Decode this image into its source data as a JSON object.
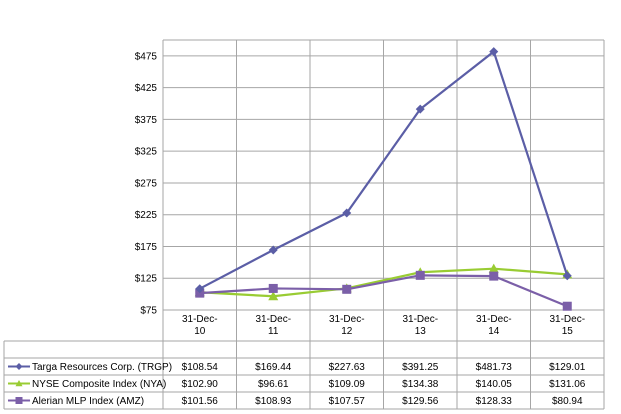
{
  "chart_data": {
    "type": "line",
    "categories": [
      "31-Dec-10",
      "31-Dec-11",
      "31-Dec-12",
      "31-Dec-13",
      "31-Dec-14",
      "31-Dec-15"
    ],
    "category_lines": [
      [
        "31-Dec-",
        "10"
      ],
      [
        "31-Dec-",
        "11"
      ],
      [
        "31-Dec-",
        "12"
      ],
      [
        "31-Dec-",
        "13"
      ],
      [
        "31-Dec-",
        "14"
      ],
      [
        "31-Dec-",
        "15"
      ]
    ],
    "yticks": [
      75,
      125,
      175,
      225,
      275,
      325,
      375,
      425,
      475
    ],
    "ytick_labels": [
      "$75",
      "$125",
      "$175",
      "$225",
      "$275",
      "$325",
      "$375",
      "$425",
      "$475"
    ],
    "ylim": [
      75,
      500
    ],
    "grid": true,
    "legend": "data-table-below",
    "series": [
      {
        "name": "Targa Resources Corp. (TRGP)",
        "marker": "diamond",
        "color": "#5b5ea6",
        "values": [
          108.54,
          169.44,
          227.63,
          391.25,
          481.73,
          129.01
        ],
        "labels": [
          "$108.54",
          "$169.44",
          "$227.63",
          "$391.25",
          "$481.73",
          "$129.01"
        ]
      },
      {
        "name": "NYSE Composite Index (NYA)",
        "marker": "triangle",
        "color": "#99cc33",
        "values": [
          102.9,
          96.61,
          109.09,
          134.38,
          140.05,
          131.06
        ],
        "labels": [
          "$102.90",
          "$96.61",
          "$109.09",
          "$134.38",
          "$140.05",
          "$131.06"
        ]
      },
      {
        "name": "Alerian MLP Index (AMZ)",
        "marker": "square",
        "color": "#7b5fa8",
        "values": [
          101.56,
          108.93,
          107.57,
          129.56,
          128.33,
          80.94
        ],
        "labels": [
          "$101.56",
          "$108.93",
          "$107.57",
          "$129.56",
          "$128.33",
          "$80.94"
        ]
      }
    ]
  }
}
